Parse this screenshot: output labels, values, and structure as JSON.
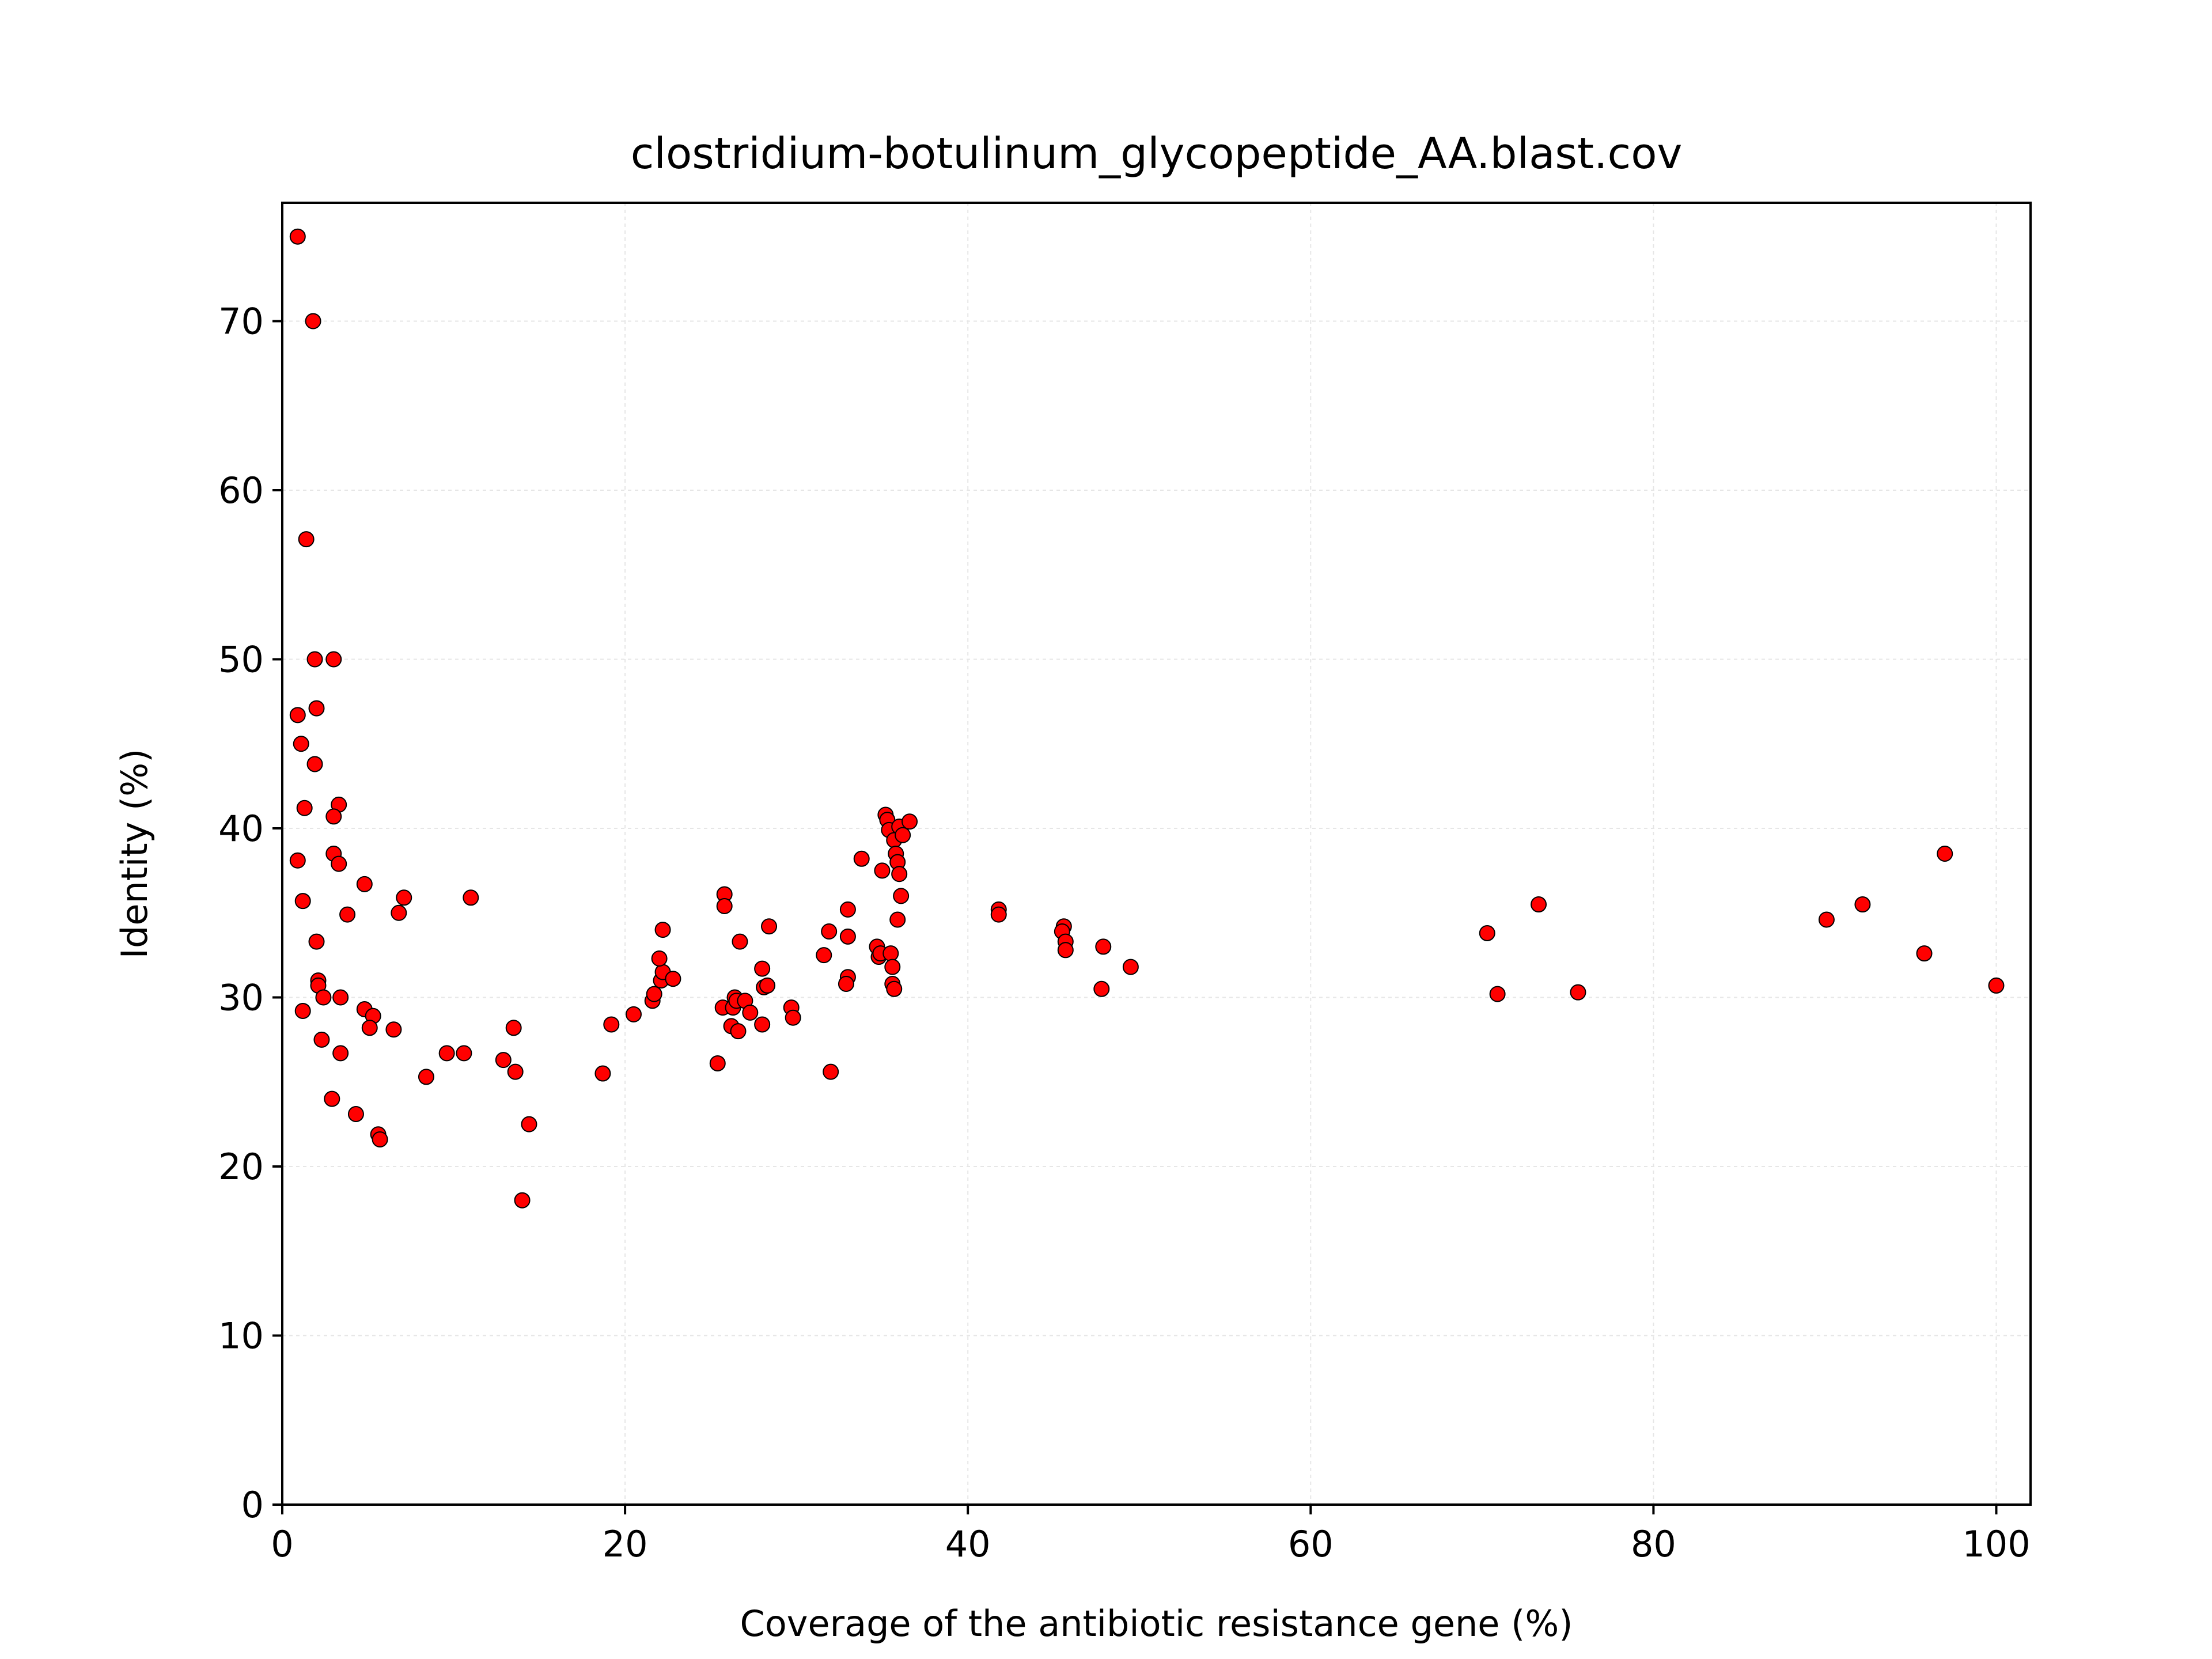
{
  "chart_data": {
    "type": "scatter",
    "title": "clostridium-botulinum_glycopeptide_AA.blast.cov",
    "xlabel": "Coverage of the antibiotic resistance gene (%)",
    "ylabel": "Identity (%)",
    "xlim": [
      0,
      102
    ],
    "ylim": [
      0,
      77
    ],
    "xticks": [
      0,
      20,
      40,
      60,
      80,
      100
    ],
    "yticks": [
      0,
      10,
      20,
      30,
      40,
      50,
      60,
      70
    ],
    "grid": true,
    "colors": {
      "marker_fill": "#ff0000",
      "marker_edge": "#000000"
    },
    "points": [
      {
        "x": 0.9,
        "y": 75.0
      },
      {
        "x": 1.8,
        "y": 70.0
      },
      {
        "x": 1.4,
        "y": 57.1
      },
      {
        "x": 1.9,
        "y": 50.0
      },
      {
        "x": 3.0,
        "y": 50.0
      },
      {
        "x": 0.9,
        "y": 46.7
      },
      {
        "x": 2.0,
        "y": 47.1
      },
      {
        "x": 1.1,
        "y": 45.0
      },
      {
        "x": 1.9,
        "y": 43.8
      },
      {
        "x": 1.3,
        "y": 41.2
      },
      {
        "x": 3.3,
        "y": 41.4
      },
      {
        "x": 3.0,
        "y": 40.7
      },
      {
        "x": 0.9,
        "y": 38.1
      },
      {
        "x": 3.0,
        "y": 38.5
      },
      {
        "x": 3.3,
        "y": 37.9
      },
      {
        "x": 1.2,
        "y": 35.7
      },
      {
        "x": 3.8,
        "y": 34.9
      },
      {
        "x": 4.8,
        "y": 36.7
      },
      {
        "x": 6.8,
        "y": 35.0
      },
      {
        "x": 7.1,
        "y": 35.9
      },
      {
        "x": 11.0,
        "y": 35.9
      },
      {
        "x": 2.0,
        "y": 33.3
      },
      {
        "x": 2.1,
        "y": 31.0
      },
      {
        "x": 2.1,
        "y": 30.7
      },
      {
        "x": 2.4,
        "y": 30.0
      },
      {
        "x": 3.4,
        "y": 30.0
      },
      {
        "x": 1.2,
        "y": 29.2
      },
      {
        "x": 4.8,
        "y": 29.3
      },
      {
        "x": 5.3,
        "y": 28.9
      },
      {
        "x": 5.1,
        "y": 28.2
      },
      {
        "x": 6.5,
        "y": 28.1
      },
      {
        "x": 2.3,
        "y": 27.5
      },
      {
        "x": 3.4,
        "y": 26.7
      },
      {
        "x": 9.6,
        "y": 26.7
      },
      {
        "x": 10.6,
        "y": 26.7
      },
      {
        "x": 8.4,
        "y": 25.3
      },
      {
        "x": 2.9,
        "y": 24.0
      },
      {
        "x": 4.3,
        "y": 23.1
      },
      {
        "x": 5.6,
        "y": 21.9
      },
      {
        "x": 5.7,
        "y": 21.6
      },
      {
        "x": 13.5,
        "y": 28.2
      },
      {
        "x": 12.9,
        "y": 26.3
      },
      {
        "x": 13.6,
        "y": 25.6
      },
      {
        "x": 14.4,
        "y": 22.5
      },
      {
        "x": 14.0,
        "y": 18.0
      },
      {
        "x": 18.7,
        "y": 25.5
      },
      {
        "x": 19.2,
        "y": 28.4
      },
      {
        "x": 20.5,
        "y": 29.0
      },
      {
        "x": 21.6,
        "y": 29.8
      },
      {
        "x": 21.7,
        "y": 30.2
      },
      {
        "x": 22.1,
        "y": 31.0
      },
      {
        "x": 22.2,
        "y": 31.5
      },
      {
        "x": 22.8,
        "y": 31.1
      },
      {
        "x": 22.0,
        "y": 32.3
      },
      {
        "x": 22.2,
        "y": 34.0
      },
      {
        "x": 25.8,
        "y": 36.1
      },
      {
        "x": 25.8,
        "y": 35.4
      },
      {
        "x": 25.4,
        "y": 26.1
      },
      {
        "x": 25.7,
        "y": 29.4
      },
      {
        "x": 26.2,
        "y": 28.3
      },
      {
        "x": 26.3,
        "y": 29.4
      },
      {
        "x": 26.4,
        "y": 30.0
      },
      {
        "x": 26.5,
        "y": 29.8
      },
      {
        "x": 26.6,
        "y": 28.0
      },
      {
        "x": 26.7,
        "y": 33.3
      },
      {
        "x": 27.0,
        "y": 29.8
      },
      {
        "x": 27.3,
        "y": 29.1
      },
      {
        "x": 28.0,
        "y": 31.7
      },
      {
        "x": 28.1,
        "y": 30.6
      },
      {
        "x": 28.0,
        "y": 28.4
      },
      {
        "x": 28.4,
        "y": 34.2
      },
      {
        "x": 28.3,
        "y": 30.7
      },
      {
        "x": 29.7,
        "y": 29.4
      },
      {
        "x": 29.8,
        "y": 28.8
      },
      {
        "x": 31.6,
        "y": 32.5
      },
      {
        "x": 31.9,
        "y": 33.9
      },
      {
        "x": 32.0,
        "y": 25.6
      },
      {
        "x": 33.0,
        "y": 35.2
      },
      {
        "x": 33.0,
        "y": 33.6
      },
      {
        "x": 33.0,
        "y": 31.2
      },
      {
        "x": 32.9,
        "y": 30.8
      },
      {
        "x": 33.8,
        "y": 38.2
      },
      {
        "x": 34.7,
        "y": 33.0
      },
      {
        "x": 34.8,
        "y": 32.4
      },
      {
        "x": 34.9,
        "y": 32.6
      },
      {
        "x": 35.0,
        "y": 37.5
      },
      {
        "x": 35.2,
        "y": 40.8
      },
      {
        "x": 35.3,
        "y": 40.5
      },
      {
        "x": 35.4,
        "y": 39.9
      },
      {
        "x": 35.5,
        "y": 32.6
      },
      {
        "x": 35.6,
        "y": 31.8
      },
      {
        "x": 35.6,
        "y": 30.8
      },
      {
        "x": 35.7,
        "y": 30.5
      },
      {
        "x": 35.7,
        "y": 39.3
      },
      {
        "x": 35.8,
        "y": 38.5
      },
      {
        "x": 35.9,
        "y": 34.6
      },
      {
        "x": 35.9,
        "y": 38.0
      },
      {
        "x": 36.0,
        "y": 40.1
      },
      {
        "x": 36.0,
        "y": 37.3
      },
      {
        "x": 36.1,
        "y": 36.0
      },
      {
        "x": 36.2,
        "y": 39.6
      },
      {
        "x": 36.6,
        "y": 40.4
      },
      {
        "x": 41.8,
        "y": 35.2
      },
      {
        "x": 41.8,
        "y": 34.9
      },
      {
        "x": 45.6,
        "y": 34.2
      },
      {
        "x": 45.5,
        "y": 33.9
      },
      {
        "x": 45.7,
        "y": 33.3
      },
      {
        "x": 45.7,
        "y": 32.8
      },
      {
        "x": 47.8,
        "y": 30.5
      },
      {
        "x": 47.9,
        "y": 33.0
      },
      {
        "x": 49.5,
        "y": 31.8
      },
      {
        "x": 70.3,
        "y": 33.8
      },
      {
        "x": 70.9,
        "y": 30.2
      },
      {
        "x": 73.3,
        "y": 35.5
      },
      {
        "x": 75.6,
        "y": 30.3
      },
      {
        "x": 90.1,
        "y": 34.6
      },
      {
        "x": 92.2,
        "y": 35.5
      },
      {
        "x": 95.8,
        "y": 32.6
      },
      {
        "x": 97.0,
        "y": 38.5
      },
      {
        "x": 100.0,
        "y": 30.7
      }
    ]
  }
}
